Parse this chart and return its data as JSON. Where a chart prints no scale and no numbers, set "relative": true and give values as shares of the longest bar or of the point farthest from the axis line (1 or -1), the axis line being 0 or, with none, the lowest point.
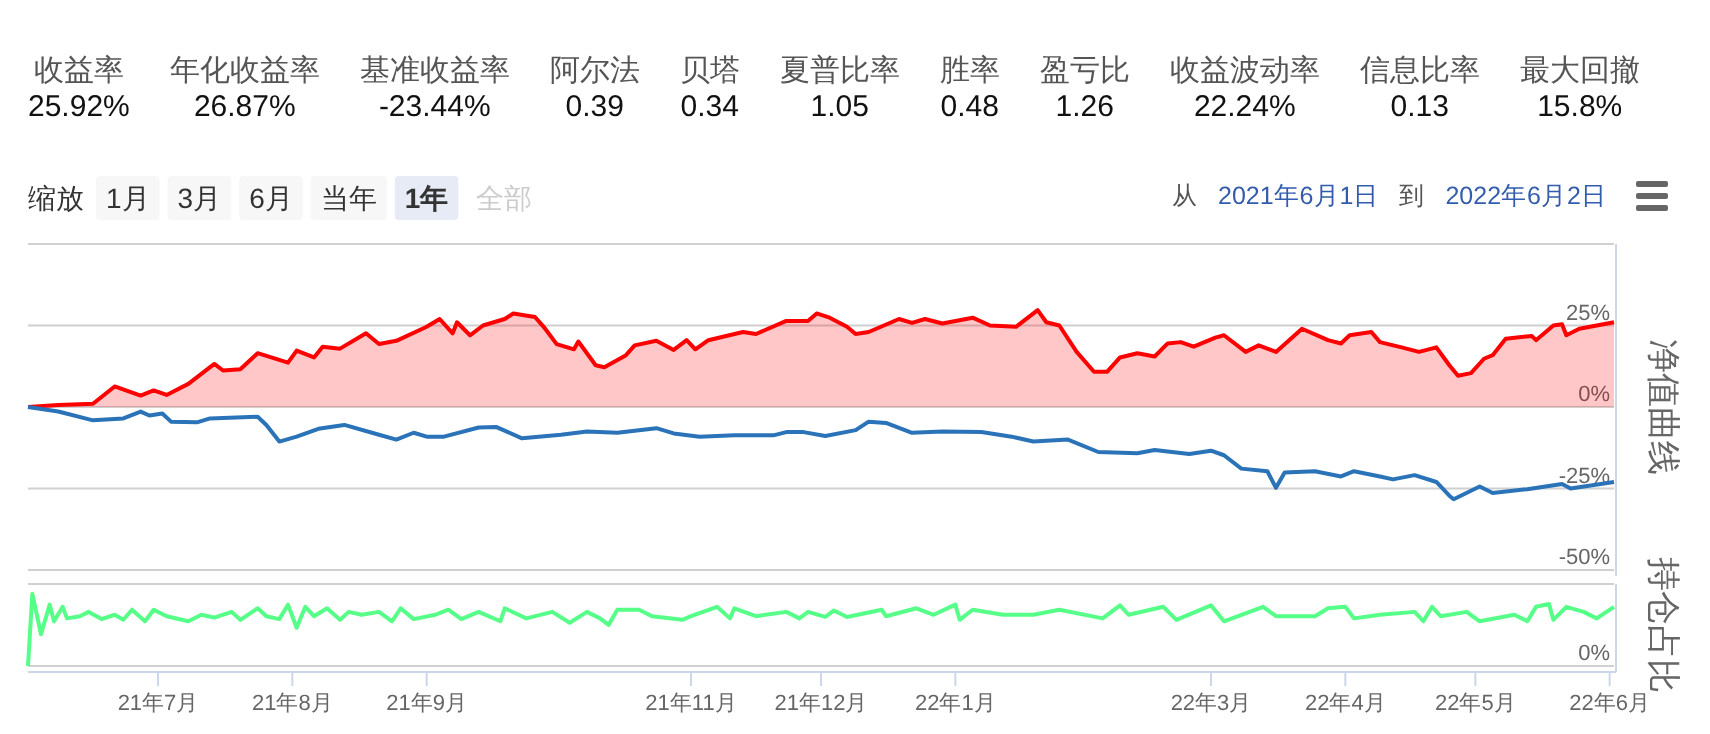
{
  "chart_data": [
    {
      "type": "other",
      "annotations": [
        "收益率",
        "25.92%",
        "年化收益率",
        "26.87%",
        "基准收益率",
        "-23.44%",
        "阿尔法",
        "0.39",
        "贝塔",
        "0.34",
        "夏普比率",
        "1.05",
        "胜率",
        "0.48",
        "盈亏比",
        "1.26",
        "收益波动率",
        "22.24%",
        "信息比率",
        "0.13",
        "最大回撤",
        "15.8%",
        "缩放",
        "1月",
        "3月",
        "6月",
        "当年",
        "1年",
        "全部",
        "从",
        "2021年6月1日",
        "到",
        "2022年6月2日"
      ]
    },
    {
      "type": "line",
      "ylabel": "净值曲线",
      "xlim": [
        "2021-06-01",
        "2022-06-02"
      ],
      "ylim": [
        -50,
        50
      ],
      "yticks": [
        {
          "value": -50,
          "label": "-50%"
        },
        {
          "value": -25,
          "label": "-25%"
        },
        {
          "value": 0,
          "label": "0%"
        },
        {
          "value": 25,
          "label": "25%"
        },
        {
          "value": 50,
          "label": null
        }
      ],
      "grid": "y",
      "tick_labels": "y",
      "series": [
        {
          "type": "area",
          "color": "#ff0000",
          "x": [
            "2021-06-01",
            "2021-06-08",
            "2021-06-16",
            "2021-06-21",
            "2021-06-27",
            "2021-06-30",
            "2021-07-03",
            "2021-07-08",
            "2021-07-14",
            "2021-07-16",
            "2021-07-20",
            "2021-07-24",
            "2021-07-31",
            "2021-08-02",
            "2021-08-06",
            "2021-08-08",
            "2021-08-12",
            "2021-08-18",
            "2021-08-21",
            "2021-08-25",
            "2021-09-01",
            "2021-09-04",
            "2021-09-07",
            "2021-09-08",
            "2021-09-11",
            "2021-09-14",
            "2021-09-19",
            "2021-09-21",
            "2021-09-26",
            "2021-09-28",
            "2021-10-01",
            "2021-10-05",
            "2021-10-06",
            "2021-10-10",
            "2021-10-12",
            "2021-10-17",
            "2021-10-19",
            "2021-10-24",
            "2021-10-28",
            "2021-10-31",
            "2021-11-02",
            "2021-11-05",
            "2021-11-13",
            "2021-11-16",
            "2021-11-23",
            "2021-11-28",
            "2021-11-30",
            "2021-12-03",
            "2021-12-07",
            "2021-12-09",
            "2021-12-12",
            "2021-12-19",
            "2021-12-22",
            "2021-12-25",
            "2021-12-29",
            "2022-01-05",
            "2022-01-09",
            "2022-01-15",
            "2022-01-20",
            "2022-01-22",
            "2022-01-25",
            "2022-01-29",
            "2022-02-02",
            "2022-02-05",
            "2022-02-08",
            "2022-02-12",
            "2022-02-16",
            "2022-02-19",
            "2022-02-22",
            "2022-02-25",
            "2022-03-02",
            "2022-03-04",
            "2022-03-09",
            "2022-03-12",
            "2022-03-16",
            "2022-03-22",
            "2022-03-28",
            "2022-03-31",
            "2022-04-02",
            "2022-04-07",
            "2022-04-09",
            "2022-04-14",
            "2022-04-18",
            "2022-04-22",
            "2022-04-25",
            "2022-04-27",
            "2022-04-30",
            "2022-05-03",
            "2022-05-05",
            "2022-05-08",
            "2022-05-14",
            "2022-05-15",
            "2022-05-19",
            "2022-05-21",
            "2022-05-22",
            "2022-05-25",
            "2022-06-02"
          ],
          "values": [
            0,
            0.6,
            1.0,
            6.3,
            3.5,
            5.1,
            3.7,
            7.1,
            13.2,
            11.2,
            11.6,
            16.5,
            13.6,
            17.3,
            15.2,
            18.5,
            17.9,
            22.6,
            19.3,
            20.3,
            24.6,
            27.0,
            22.6,
            26.0,
            22.0,
            25.0,
            27.0,
            28.7,
            27.6,
            24.6,
            19.3,
            17.7,
            20.1,
            12.8,
            12.2,
            15.9,
            18.9,
            20.3,
            17.5,
            20.5,
            17.7,
            20.5,
            23.0,
            22.4,
            26.4,
            26.4,
            28.7,
            27.4,
            24.6,
            22.4,
            23.0,
            27.0,
            25.8,
            27.0,
            25.6,
            27.4,
            25.0,
            24.6,
            29.7,
            26.0,
            25.0,
            16.9,
            10.8,
            10.8,
            15.2,
            16.5,
            15.5,
            19.5,
            19.9,
            18.5,
            21.3,
            22.0,
            16.9,
            18.9,
            16.9,
            24.0,
            20.5,
            19.5,
            22.0,
            23.0,
            19.9,
            18.3,
            16.9,
            18.3,
            12.8,
            9.6,
            10.4,
            14.8,
            15.9,
            20.9,
            21.8,
            20.5,
            25.0,
            25.4,
            22.0,
            24.0,
            26.0
          ]
        },
        {
          "type": "line",
          "color": "#2b73b8",
          "x": [
            "2021-06-01",
            "2021-06-08",
            "2021-06-16",
            "2021-06-23",
            "2021-06-27",
            "2021-06-29",
            "2021-07-02",
            "2021-07-04",
            "2021-07-10",
            "2021-07-13",
            "2021-07-24",
            "2021-07-26",
            "2021-07-29",
            "2021-08-02",
            "2021-08-07",
            "2021-08-13",
            "2021-08-21",
            "2021-08-25",
            "2021-08-29",
            "2021-09-01",
            "2021-09-05",
            "2021-09-13",
            "2021-09-17",
            "2021-09-23",
            "2021-10-02",
            "2021-10-08",
            "2021-10-15",
            "2021-10-24",
            "2021-10-28",
            "2021-11-03",
            "2021-11-11",
            "2021-11-20",
            "2021-11-23",
            "2021-11-27",
            "2021-12-02",
            "2021-12-09",
            "2021-12-12",
            "2021-12-16",
            "2021-12-22",
            "2021-12-29",
            "2022-01-07",
            "2022-01-14",
            "2022-01-19",
            "2022-01-27",
            "2022-02-03",
            "2022-02-12",
            "2022-02-16",
            "2022-02-24",
            "2022-03-01",
            "2022-03-04",
            "2022-03-08",
            "2022-03-14",
            "2022-03-16",
            "2022-03-18",
            "2022-03-25",
            "2022-03-31",
            "2022-04-03",
            "2022-04-09",
            "2022-04-12",
            "2022-04-17",
            "2022-04-22",
            "2022-04-25",
            "2022-04-26",
            "2022-05-02",
            "2022-05-05",
            "2022-05-13",
            "2022-05-21",
            "2022-05-23",
            "2022-06-02"
          ],
          "values": [
            0,
            -1.4,
            -4.1,
            -3.5,
            -1.4,
            -2.6,
            -2.0,
            -4.5,
            -4.7,
            -3.5,
            -3.0,
            -5.5,
            -10.6,
            -9.1,
            -6.7,
            -5.5,
            -8.5,
            -10.0,
            -7.9,
            -9.1,
            -9.1,
            -6.3,
            -6.1,
            -9.6,
            -8.5,
            -7.5,
            -7.9,
            -6.5,
            -8.1,
            -9.1,
            -8.7,
            -8.7,
            -7.7,
            -7.7,
            -8.9,
            -7.1,
            -4.5,
            -4.9,
            -7.9,
            -7.5,
            -7.7,
            -9.1,
            -10.6,
            -10.0,
            -13.8,
            -14.2,
            -13.2,
            -14.4,
            -13.4,
            -14.8,
            -18.9,
            -19.7,
            -24.8,
            -20.1,
            -19.7,
            -21.3,
            -19.7,
            -21.3,
            -22.2,
            -20.9,
            -23.0,
            -27.2,
            -28.3,
            -24.4,
            -26.4,
            -25.2,
            -23.6,
            -25.0,
            -23.0
          ]
        }
      ]
    },
    {
      "type": "line",
      "ylabel": "持仓占比",
      "relative": true,
      "xlim": [
        "2021-06-01",
        "2022-06-02"
      ],
      "tick_labels": "x",
      "annotations": [
        "0%"
      ],
      "xticks": [
        {
          "value": "2021-07-01",
          "label": "21年7月"
        },
        {
          "value": "2021-08-01",
          "label": "21年8月"
        },
        {
          "value": "2021-09-01",
          "label": "21年9月"
        },
        {
          "value": "2021-11-01",
          "label": "21年11月"
        },
        {
          "value": "2021-12-01",
          "label": "21年12月"
        },
        {
          "value": "2022-01-01",
          "label": "22年1月"
        },
        {
          "value": "2022-03-01",
          "label": "22年3月"
        },
        {
          "value": "2022-04-01",
          "label": "22年4月"
        },
        {
          "value": "2022-05-01",
          "label": "22年5月"
        },
        {
          "value": "2022-06-01",
          "label": "22年6月"
        }
      ],
      "series": [
        {
          "type": "line",
          "color": "#55ff88",
          "x": [
            "2021-06-01",
            "2021-06-02",
            "2021-06-04",
            "2021-06-06",
            "2021-06-07",
            "2021-06-09",
            "2021-06-10",
            "2021-06-13",
            "2021-06-15",
            "2021-06-18",
            "2021-06-21",
            "2021-06-23",
            "2021-06-25",
            "2021-06-28",
            "2021-06-30",
            "2021-07-03",
            "2021-07-08",
            "2021-07-11",
            "2021-07-14",
            "2021-07-18",
            "2021-07-20",
            "2021-07-24",
            "2021-07-26",
            "2021-07-29",
            "2021-07-31",
            "2021-08-02",
            "2021-08-04",
            "2021-08-06",
            "2021-08-09",
            "2021-08-12",
            "2021-08-14",
            "2021-08-17",
            "2021-08-21",
            "2021-08-24",
            "2021-08-26",
            "2021-08-29",
            "2021-09-03",
            "2021-09-06",
            "2021-09-09",
            "2021-09-13",
            "2021-09-18",
            "2021-09-19",
            "2021-09-24",
            "2021-09-30",
            "2021-10-04",
            "2021-10-08",
            "2021-10-11",
            "2021-10-13",
            "2021-10-15",
            "2021-10-20",
            "2021-10-23",
            "2021-10-30",
            "2021-11-01",
            "2021-11-07",
            "2021-11-10",
            "2021-11-11",
            "2021-11-16",
            "2021-11-23",
            "2021-11-26",
            "2021-11-28",
            "2021-12-02",
            "2021-12-04",
            "2021-12-07",
            "2021-12-15",
            "2021-12-16",
            "2021-12-23",
            "2021-12-27",
            "2022-01-01",
            "2022-01-02",
            "2022-01-05",
            "2022-01-12",
            "2022-01-19",
            "2022-01-25",
            "2022-02-04",
            "2022-02-08",
            "2022-02-10",
            "2022-02-18",
            "2022-02-21",
            "2022-03-01",
            "2022-03-04",
            "2022-03-13",
            "2022-03-16",
            "2022-03-25",
            "2022-03-28",
            "2022-04-01",
            "2022-04-03",
            "2022-04-09",
            "2022-04-17",
            "2022-04-19",
            "2022-04-21",
            "2022-04-23",
            "2022-04-29",
            "2022-05-02",
            "2022-05-10",
            "2022-05-13",
            "2022-05-15",
            "2022-05-18",
            "2022-05-19",
            "2022-05-22",
            "2022-05-26",
            "2022-05-29",
            "2022-06-02"
          ],
          "values": [
            0,
            1.0,
            0.44,
            0.85,
            0.62,
            0.82,
            0.66,
            0.69,
            0.75,
            0.65,
            0.71,
            0.64,
            0.78,
            0.62,
            0.78,
            0.69,
            0.62,
            0.71,
            0.67,
            0.75,
            0.64,
            0.8,
            0.69,
            0.65,
            0.85,
            0.53,
            0.82,
            0.69,
            0.8,
            0.64,
            0.75,
            0.71,
            0.75,
            0.62,
            0.8,
            0.65,
            0.71,
            0.78,
            0.65,
            0.75,
            0.62,
            0.8,
            0.66,
            0.75,
            0.6,
            0.75,
            0.66,
            0.57,
            0.78,
            0.78,
            0.69,
            0.64,
            0.69,
            0.82,
            0.66,
            0.8,
            0.69,
            0.75,
            0.66,
            0.75,
            0.68,
            0.77,
            0.68,
            0.78,
            0.69,
            0.8,
            0.71,
            0.85,
            0.64,
            0.78,
            0.71,
            0.71,
            0.78,
            0.66,
            0.84,
            0.71,
            0.82,
            0.64,
            0.84,
            0.62,
            0.82,
            0.69,
            0.69,
            0.8,
            0.82,
            0.66,
            0.71,
            0.75,
            0.62,
            0.82,
            0.69,
            0.75,
            0.62,
            0.71,
            0.62,
            0.82,
            0.86,
            0.64,
            0.82,
            0.75,
            0.66,
            0.82
          ]
        }
      ]
    }
  ]
}
